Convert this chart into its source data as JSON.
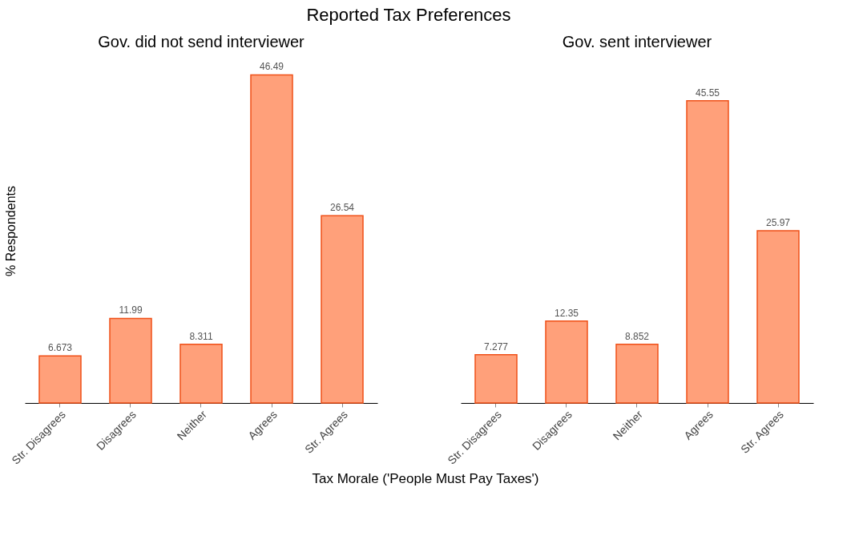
{
  "chart_data": [
    {
      "type": "bar",
      "title": "Reported Tax Preferences",
      "subtitle": "Gov. did not send interviewer",
      "ylabel": "% Respondents",
      "xlabel": "Tax Morale ('People Must Pay Taxes')",
      "categories": [
        "Str. Disagrees",
        "Disagrees",
        "Neither",
        "Agrees",
        "Str. Agrees"
      ],
      "values": [
        6.673,
        11.99,
        8.311,
        46.49,
        26.54
      ],
      "color": "#ffa07a",
      "data_labels": true,
      "tick_labels": "x",
      "grid": false
    },
    {
      "type": "bar",
      "subtitle": "Gov. sent interviewer",
      "categories": [
        "Str. Disagrees",
        "Disagrees",
        "Neither",
        "Agrees",
        "Str. Agrees"
      ],
      "values": [
        7.277,
        12.35,
        8.852,
        45.55,
        25.97
      ],
      "color": "#ffa07a",
      "data_labels": true,
      "tick_labels": "x",
      "grid": false
    }
  ]
}
